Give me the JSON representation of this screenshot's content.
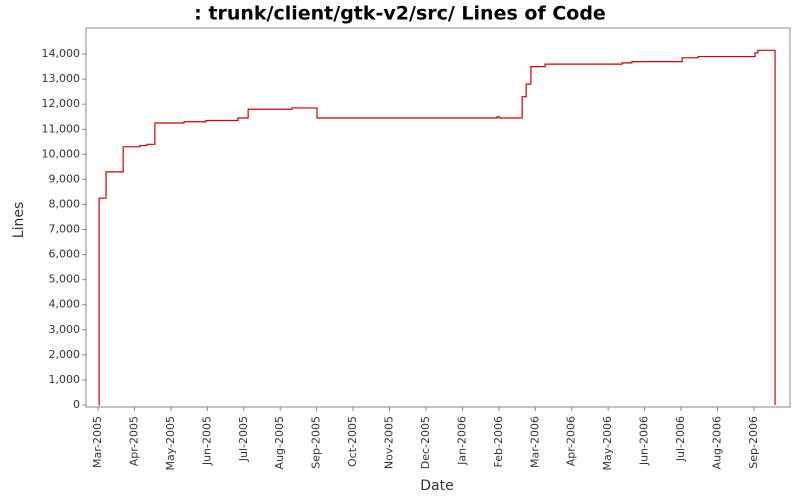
{
  "chart_data": {
    "type": "line",
    "step": true,
    "title": ": trunk/client/gtk-v2/src/ Lines of Code",
    "x_label": "Date",
    "y_label": "Lines",
    "color": "#cc0000",
    "x": [
      0.02,
      0.03,
      0.22,
      0.69,
      1.15,
      1.34,
      1.56,
      2.36,
      2.96,
      3.84,
      4.12,
      5.32,
      6.01,
      10.95,
      11.01,
      11.64,
      11.75,
      11.88,
      12.27,
      14.38,
      14.65,
      16.03,
      16.47,
      18.03,
      18.11,
      18.58
    ],
    "values": [
      0,
      8250,
      9300,
      10300,
      10350,
      10400,
      11250,
      11300,
      11350,
      11450,
      11800,
      11850,
      11450,
      11500,
      11450,
      12300,
      12800,
      13500,
      13600,
      13650,
      13700,
      13850,
      13900,
      14050,
      14150,
      0
    ],
    "xlim": [
      -0.33,
      18.99
    ],
    "ylim": [
      -80,
      15040
    ],
    "xticks": [
      {
        "value": 0,
        "label": "Mar-2005"
      },
      {
        "value": 1,
        "label": "Apr-2005"
      },
      {
        "value": 2,
        "label": "May-2005"
      },
      {
        "value": 3,
        "label": "Jun-2005"
      },
      {
        "value": 4,
        "label": "Jul-2005"
      },
      {
        "value": 5,
        "label": "Aug-2005"
      },
      {
        "value": 6,
        "label": "Sep-2005"
      },
      {
        "value": 7,
        "label": "Oct-2005"
      },
      {
        "value": 8,
        "label": "Nov-2005"
      },
      {
        "value": 9,
        "label": "Dec-2005"
      },
      {
        "value": 10,
        "label": "Jan-2006"
      },
      {
        "value": 11,
        "label": "Feb-2006"
      },
      {
        "value": 12,
        "label": "Mar-2006"
      },
      {
        "value": 13,
        "label": "Apr-2006"
      },
      {
        "value": 14,
        "label": "May-2006"
      },
      {
        "value": 15,
        "label": "Jun-2006"
      },
      {
        "value": 16,
        "label": "Jul-2006"
      },
      {
        "value": 17,
        "label": "Aug-2006"
      },
      {
        "value": 18,
        "label": "Sep-2006"
      }
    ],
    "yticks": [
      0,
      1000,
      2000,
      3000,
      4000,
      5000,
      6000,
      7000,
      8000,
      9000,
      10000,
      11000,
      12000,
      13000,
      14000
    ],
    "ytick_labels": [
      "0",
      "1,000",
      "2,000",
      "3,000",
      "4,000",
      "5,000",
      "6,000",
      "7,000",
      "8,000",
      "9,000",
      "10,000",
      "11,000",
      "12,000",
      "13,000",
      "14,000"
    ],
    "grid": false
  }
}
